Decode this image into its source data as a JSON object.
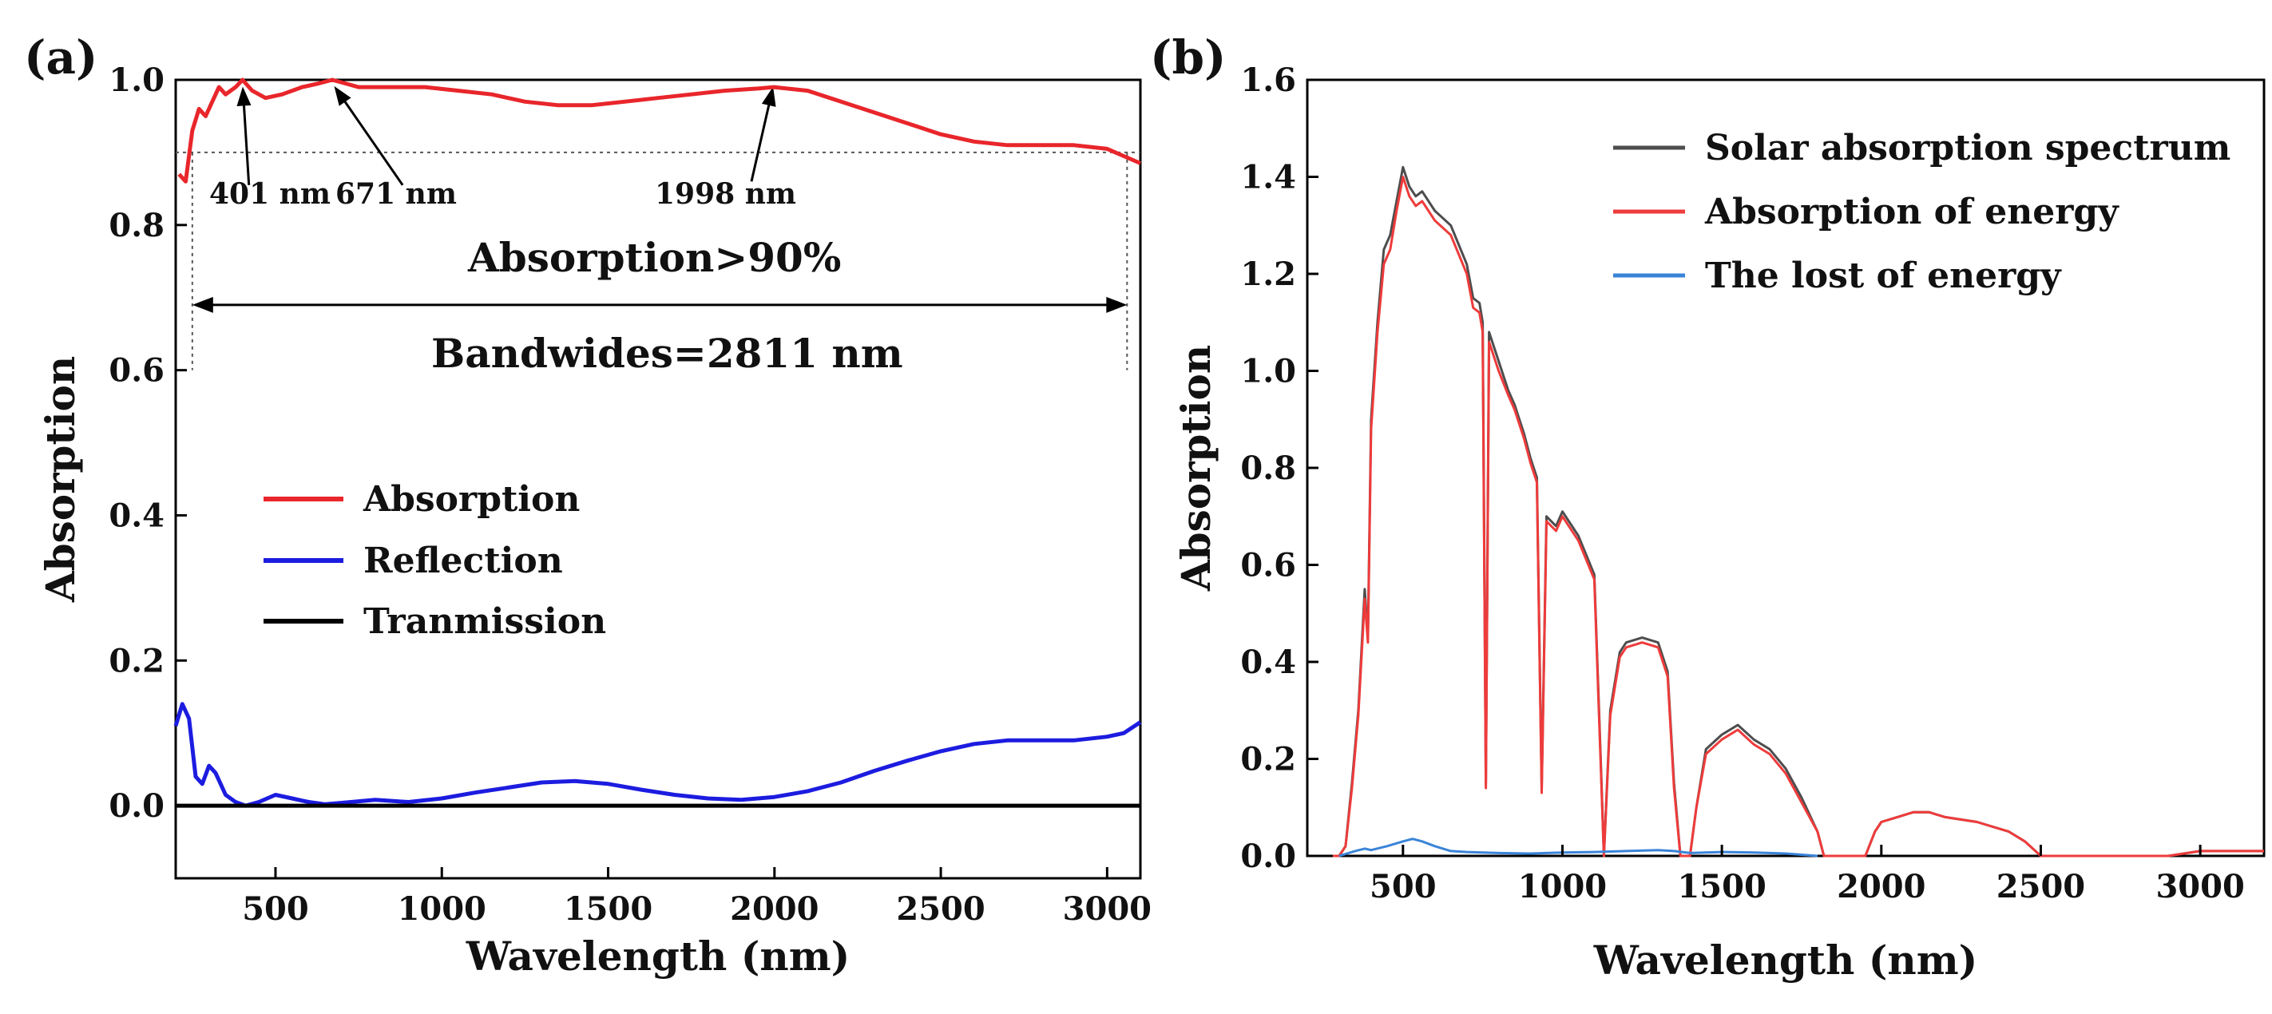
{
  "chart_data": [
    {
      "panel": "(a)",
      "type": "line",
      "xlabel": "Wavelength (nm)",
      "ylabel": "Absorption",
      "xlim": [
        200,
        3100
      ],
      "ylim": [
        -0.1,
        1.0
      ],
      "xticks": [
        500,
        1000,
        1500,
        2000,
        2500,
        3000
      ],
      "yticks": [
        0.0,
        0.2,
        0.4,
        0.6,
        0.8,
        1.0
      ],
      "threshold": 0.9,
      "series": [
        {
          "name": "Absorption",
          "color": "#e8262b",
          "x": [
            210,
            230,
            250,
            270,
            290,
            310,
            330,
            350,
            380,
            401,
            430,
            470,
            520,
            580,
            630,
            671,
            750,
            850,
            950,
            1050,
            1150,
            1250,
            1350,
            1450,
            1550,
            1650,
            1750,
            1850,
            1950,
            1998,
            2100,
            2200,
            2300,
            2400,
            2500,
            2600,
            2700,
            2800,
            2900,
            3000,
            3050,
            3100
          ],
          "y": [
            0.87,
            0.86,
            0.93,
            0.96,
            0.95,
            0.97,
            0.99,
            0.98,
            0.99,
            1.0,
            0.985,
            0.975,
            0.98,
            0.99,
            0.995,
            1.0,
            0.99,
            0.99,
            0.99,
            0.985,
            0.98,
            0.97,
            0.965,
            0.965,
            0.97,
            0.975,
            0.98,
            0.985,
            0.988,
            0.99,
            0.985,
            0.97,
            0.955,
            0.94,
            0.925,
            0.915,
            0.91,
            0.91,
            0.91,
            0.905,
            0.895,
            0.885
          ]
        },
        {
          "name": "Reflection",
          "color": "#1c1ce0",
          "x": [
            200,
            220,
            240,
            260,
            280,
            300,
            320,
            350,
            380,
            410,
            450,
            500,
            550,
            600,
            650,
            700,
            800,
            900,
            1000,
            1100,
            1200,
            1300,
            1400,
            1500,
            1600,
            1700,
            1800,
            1900,
            2000,
            2100,
            2200,
            2300,
            2400,
            2500,
            2600,
            2700,
            2800,
            2900,
            3000,
            3050,
            3100
          ],
          "y": [
            0.11,
            0.14,
            0.12,
            0.04,
            0.03,
            0.055,
            0.045,
            0.015,
            0.005,
            0.0,
            0.005,
            0.015,
            0.01,
            0.005,
            0.002,
            0.004,
            0.008,
            0.005,
            0.01,
            0.018,
            0.025,
            0.032,
            0.034,
            0.03,
            0.022,
            0.015,
            0.01,
            0.008,
            0.012,
            0.02,
            0.032,
            0.048,
            0.062,
            0.075,
            0.085,
            0.09,
            0.09,
            0.09,
            0.095,
            0.1,
            0.115
          ]
        },
        {
          "name": "Tranmission",
          "color": "#000000",
          "x": [
            200,
            3100
          ],
          "y": [
            0.0,
            0.0
          ]
        }
      ],
      "legend": [
        "Absorption",
        "Reflection",
        "Tranmission"
      ],
      "annotations": [
        {
          "text": "401 nm",
          "wavelength": 401
        },
        {
          "text": "671 nm",
          "wavelength": 671
        },
        {
          "text": "1998 nm",
          "wavelength": 1998
        },
        {
          "text": "Absorption>90%"
        },
        {
          "text": "Bandwides=2811 nm",
          "range": [
            250,
            3060
          ]
        }
      ]
    },
    {
      "panel": "(b)",
      "type": "line",
      "xlabel": "Wavelength (nm)",
      "ylabel": "Absorption",
      "xlim": [
        200,
        3200
      ],
      "ylim": [
        0.0,
        1.6
      ],
      "xticks": [
        500,
        1000,
        1500,
        2000,
        2500,
        3000
      ],
      "yticks": [
        0.0,
        0.2,
        0.4,
        0.6,
        0.8,
        1.0,
        1.2,
        1.4,
        1.6
      ],
      "series": [
        {
          "name": "Solar absorption spectrum",
          "color": "#4d4d4d",
          "x": [
            280,
            300,
            320,
            340,
            360,
            380,
            390,
            400,
            420,
            440,
            460,
            480,
            500,
            520,
            540,
            560,
            600,
            650,
            700,
            720,
            740,
            750,
            760,
            770,
            800,
            830,
            850,
            880,
            900,
            920,
            935,
            950,
            980,
            1000,
            1050,
            1100,
            1120,
            1130,
            1150,
            1180,
            1200,
            1250,
            1300,
            1330,
            1350,
            1370,
            1400,
            1420,
            1450,
            1500,
            1550,
            1600,
            1650,
            1700,
            1750,
            1800,
            1820,
            1950,
            1980,
            2000,
            2050,
            2100,
            2150,
            2200,
            2300,
            2400,
            2450,
            2500,
            2900,
            3000,
            3100,
            3200
          ],
          "y": [
            0.0,
            0.0,
            0.02,
            0.15,
            0.3,
            0.55,
            0.45,
            0.9,
            1.1,
            1.25,
            1.28,
            1.35,
            1.42,
            1.38,
            1.36,
            1.37,
            1.33,
            1.3,
            1.22,
            1.15,
            1.14,
            1.1,
            0.15,
            1.08,
            1.02,
            0.96,
            0.93,
            0.87,
            0.82,
            0.78,
            0.14,
            0.7,
            0.68,
            0.71,
            0.66,
            0.58,
            0.2,
            0.0,
            0.3,
            0.42,
            0.44,
            0.45,
            0.44,
            0.38,
            0.15,
            0.0,
            0.0,
            0.1,
            0.22,
            0.25,
            0.27,
            0.24,
            0.22,
            0.18,
            0.12,
            0.05,
            0.0,
            0.0,
            0.05,
            0.07,
            0.08,
            0.09,
            0.09,
            0.08,
            0.07,
            0.05,
            0.03,
            0.0,
            0.0,
            0.01,
            0.01,
            0.01
          ]
        },
        {
          "name": "Absorption of energy",
          "color": "#ee3b3b",
          "x": [
            280,
            300,
            320,
            340,
            360,
            380,
            390,
            400,
            420,
            440,
            460,
            480,
            500,
            520,
            540,
            560,
            600,
            650,
            700,
            720,
            740,
            750,
            760,
            770,
            800,
            830,
            850,
            880,
            900,
            920,
            935,
            950,
            980,
            1000,
            1050,
            1100,
            1120,
            1130,
            1150,
            1180,
            1200,
            1250,
            1300,
            1330,
            1350,
            1370,
            1400,
            1420,
            1450,
            1500,
            1550,
            1600,
            1650,
            1700,
            1750,
            1800,
            1820,
            1950,
            1980,
            2000,
            2050,
            2100,
            2150,
            2200,
            2300,
            2400,
            2450,
            2500,
            2900,
            3000,
            3100,
            3200
          ],
          "y": [
            0.0,
            0.0,
            0.02,
            0.14,
            0.29,
            0.53,
            0.44,
            0.88,
            1.08,
            1.22,
            1.25,
            1.33,
            1.4,
            1.36,
            1.34,
            1.35,
            1.31,
            1.28,
            1.2,
            1.13,
            1.12,
            1.08,
            0.14,
            1.06,
            1.0,
            0.95,
            0.92,
            0.86,
            0.81,
            0.77,
            0.13,
            0.69,
            0.67,
            0.7,
            0.65,
            0.57,
            0.19,
            0.0,
            0.29,
            0.41,
            0.43,
            0.44,
            0.43,
            0.37,
            0.14,
            0.0,
            0.0,
            0.1,
            0.21,
            0.24,
            0.26,
            0.23,
            0.21,
            0.17,
            0.11,
            0.05,
            0.0,
            0.0,
            0.05,
            0.07,
            0.08,
            0.09,
            0.09,
            0.08,
            0.07,
            0.05,
            0.03,
            0.0,
            0.0,
            0.01,
            0.01,
            0.01
          ]
        },
        {
          "name": "The lost of energy",
          "color": "#3a84d8",
          "x": [
            300,
            350,
            380,
            400,
            450,
            500,
            530,
            560,
            600,
            650,
            700,
            800,
            900,
            1000,
            1100,
            1200,
            1300,
            1350,
            1400,
            1500,
            1600,
            1700,
            1800
          ],
          "y": [
            0.0,
            0.01,
            0.015,
            0.012,
            0.02,
            0.03,
            0.035,
            0.03,
            0.02,
            0.01,
            0.008,
            0.006,
            0.005,
            0.007,
            0.008,
            0.01,
            0.012,
            0.01,
            0.006,
            0.008,
            0.007,
            0.005,
            0.0
          ]
        }
      ],
      "legend": [
        "Solar absorption spectrum",
        "Absorption of energy",
        "The lost of energy"
      ]
    }
  ]
}
